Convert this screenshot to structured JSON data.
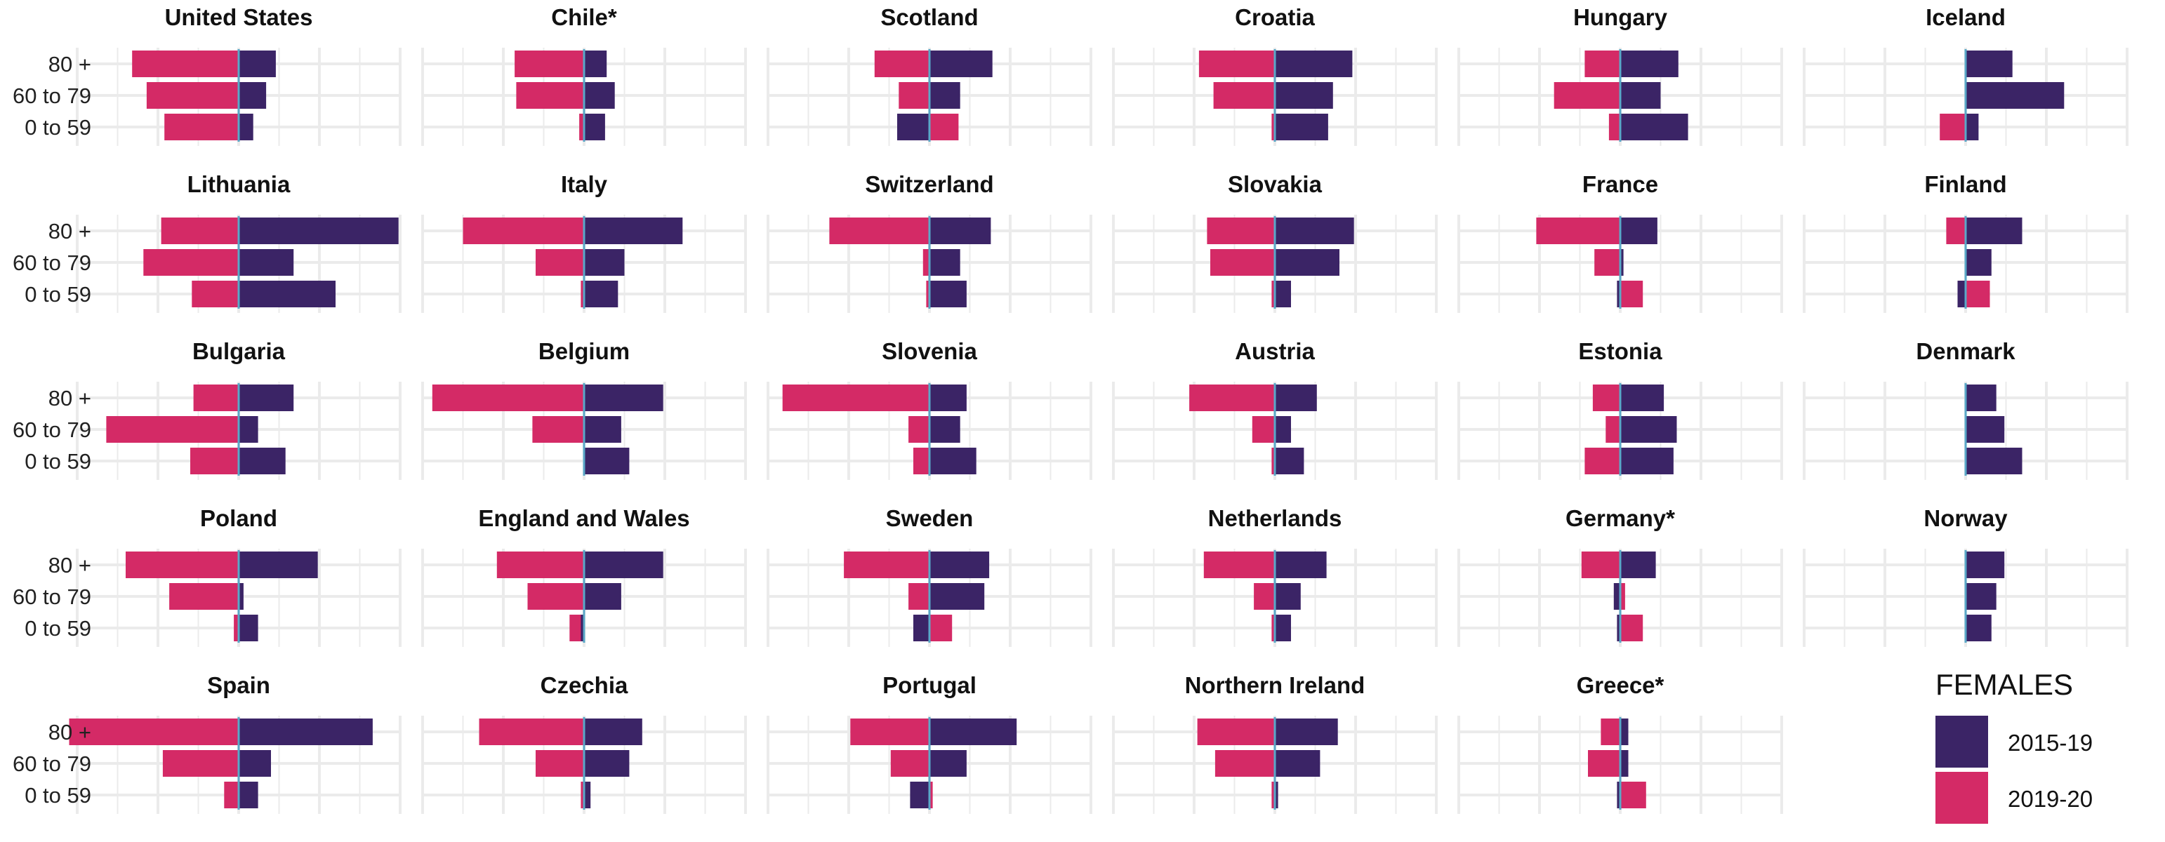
{
  "chart_data": {
    "type": "bar",
    "orientation": "horizontal",
    "layout": "small-multiples",
    "grid": true,
    "legend_position": "bottom-right",
    "legend": {
      "title": "FEMALES",
      "entries": [
        {
          "name": "2015-19",
          "color": "#3b2466"
        },
        {
          "name": "2019-20",
          "color": "#d42a66"
        }
      ]
    },
    "zero_line_color": "#5aa8c8",
    "categories": [
      "80 +",
      "60 to 79",
      "0 to 59"
    ],
    "xlim": [
      -10,
      10
    ],
    "panels": [
      {
        "name": "United States",
        "v2015": [
          2.3,
          1.7,
          0.9
        ],
        "v2019": [
          -6.6,
          -5.7,
          -4.6
        ]
      },
      {
        "name": "Chile*",
        "v2015": [
          1.4,
          1.9,
          1.3
        ],
        "v2019": [
          -4.3,
          -4.2,
          -0.3
        ]
      },
      {
        "name": "Scotland",
        "v2015": [
          3.9,
          1.9,
          -2.0
        ],
        "v2019": [
          -3.4,
          -1.9,
          1.8
        ]
      },
      {
        "name": "Croatia",
        "v2015": [
          4.8,
          3.6,
          3.3
        ],
        "v2019": [
          -4.7,
          -3.8,
          -0.2
        ]
      },
      {
        "name": "Hungary",
        "v2015": [
          3.6,
          2.5,
          4.2
        ],
        "v2019": [
          -2.2,
          -4.1,
          -0.7
        ]
      },
      {
        "name": "Iceland",
        "v2015": [
          2.9,
          6.1,
          0.8
        ],
        "v2019": [
          0.4,
          0.3,
          -1.6
        ]
      },
      {
        "name": "Lithuania",
        "v2015": [
          9.9,
          3.4,
          6.0
        ],
        "v2019": [
          -4.8,
          -5.9,
          -2.9
        ]
      },
      {
        "name": "Italy",
        "v2015": [
          6.1,
          2.5,
          2.1
        ],
        "v2019": [
          -7.5,
          -3.0,
          -0.2
        ]
      },
      {
        "name": "Switzerland",
        "v2015": [
          3.8,
          1.9,
          2.3
        ],
        "v2019": [
          -6.2,
          -0.4,
          -0.2
        ]
      },
      {
        "name": "Slovakia",
        "v2015": [
          4.9,
          4.0,
          1.0
        ],
        "v2019": [
          -4.2,
          -4.0,
          -0.2
        ]
      },
      {
        "name": "France",
        "v2015": [
          2.3,
          0.2,
          -0.2
        ],
        "v2019": [
          -5.2,
          -1.6,
          1.4
        ]
      },
      {
        "name": "Finland",
        "v2015": [
          3.5,
          1.6,
          -0.5
        ],
        "v2019": [
          -1.2,
          0.2,
          1.5
        ]
      },
      {
        "name": "Bulgaria",
        "v2015": [
          3.4,
          1.2,
          2.9
        ],
        "v2019": [
          -2.8,
          -8.2,
          -3.0
        ]
      },
      {
        "name": "Belgium",
        "v2015": [
          4.9,
          2.3,
          2.8
        ],
        "v2019": [
          -9.4,
          -3.2,
          0.4
        ]
      },
      {
        "name": "Slovenia",
        "v2015": [
          2.3,
          1.9,
          2.9
        ],
        "v2019": [
          -9.1,
          -1.3,
          -1.0
        ]
      },
      {
        "name": "Austria",
        "v2015": [
          2.6,
          1.0,
          1.8
        ],
        "v2019": [
          -5.3,
          -1.4,
          -0.2
        ]
      },
      {
        "name": "Estonia",
        "v2015": [
          2.7,
          3.5,
          3.3
        ],
        "v2019": [
          -1.7,
          -0.9,
          -2.2
        ]
      },
      {
        "name": "Denmark",
        "v2015": [
          1.9,
          2.4,
          3.5
        ],
        "v2019": [
          0.1,
          0.1,
          0.2
        ]
      },
      {
        "name": "Poland",
        "v2015": [
          4.9,
          0.3,
          1.2
        ],
        "v2019": [
          -7.0,
          -4.3,
          -0.3
        ]
      },
      {
        "name": "England and Wales",
        "v2015": [
          4.9,
          2.3,
          -0.2
        ],
        "v2019": [
          -5.4,
          -3.5,
          -0.9
        ]
      },
      {
        "name": "Sweden",
        "v2015": [
          3.7,
          3.4,
          -1.0
        ],
        "v2019": [
          -5.3,
          -1.3,
          1.4
        ]
      },
      {
        "name": "Netherlands",
        "v2015": [
          3.2,
          1.6,
          1.0
        ],
        "v2019": [
          -4.4,
          -1.3,
          -0.2
        ]
      },
      {
        "name": "Germany*",
        "v2015": [
          2.2,
          -0.4,
          -0.2
        ],
        "v2019": [
          -2.4,
          0.3,
          1.4
        ]
      },
      {
        "name": "Norway",
        "v2015": [
          2.4,
          1.9,
          1.6
        ],
        "v2019": [
          0.2,
          1.5,
          0.4
        ]
      },
      {
        "name": "Spain",
        "v2015": [
          8.3,
          2.0,
          1.2
        ],
        "v2019": [
          -10.5,
          -4.7,
          -0.9
        ]
      },
      {
        "name": "Czechia",
        "v2015": [
          3.6,
          2.8,
          0.4
        ],
        "v2019": [
          -6.5,
          -3.0,
          -0.2
        ]
      },
      {
        "name": "Portugal",
        "v2015": [
          5.4,
          2.3,
          -1.2
        ],
        "v2019": [
          -4.9,
          -2.4,
          0.2
        ]
      },
      {
        "name": "Northern Ireland",
        "v2015": [
          3.9,
          2.8,
          0.2
        ],
        "v2019": [
          -4.8,
          -3.7,
          -0.2
        ]
      },
      {
        "name": "Greece*",
        "v2015": [
          0.5,
          0.5,
          -0.2
        ],
        "v2019": [
          -1.2,
          -2.0,
          1.6
        ]
      }
    ]
  }
}
